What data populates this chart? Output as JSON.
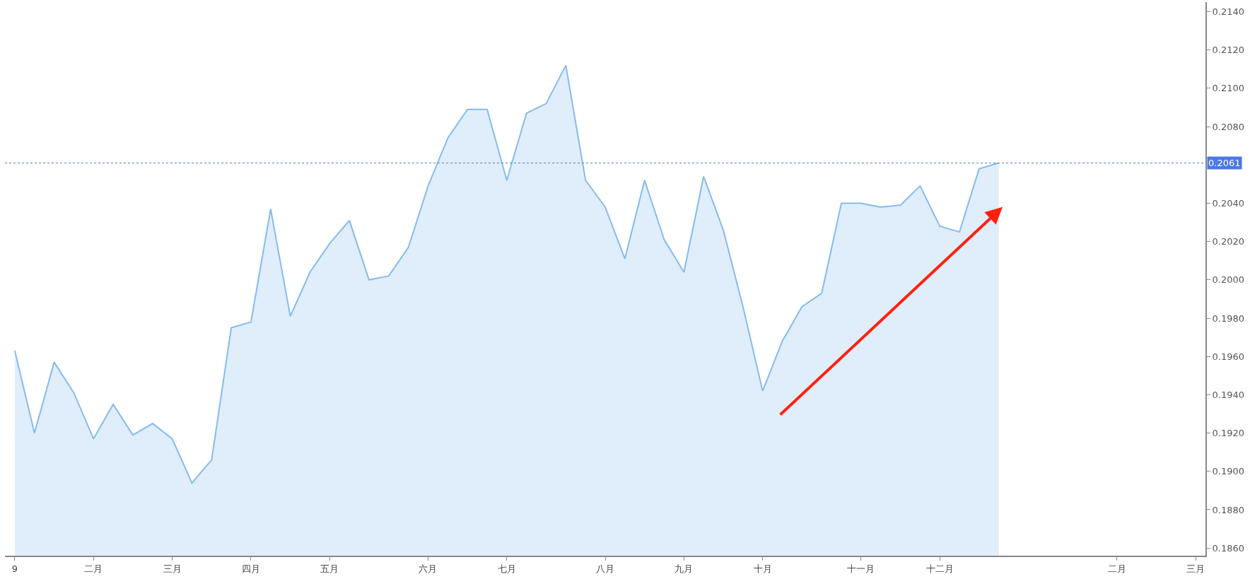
{
  "chart_data": {
    "type": "area",
    "categories": [
      "9",
      null,
      null,
      null,
      "二月",
      null,
      null,
      null,
      "三月",
      null,
      null,
      null,
      "四月",
      null,
      null,
      null,
      "五月",
      null,
      null,
      null,
      null,
      "六月",
      null,
      null,
      null,
      "七月",
      null,
      null,
      null,
      null,
      "八月",
      null,
      null,
      null,
      "九月",
      null,
      null,
      null,
      "十月",
      null,
      null,
      null,
      null,
      "十一月",
      null,
      null,
      null,
      "十二月",
      null,
      null,
      null,
      null,
      null,
      null,
      null,
      null,
      "二月",
      null,
      null,
      null,
      "三月"
    ],
    "series": [
      {
        "color": "#85bbee",
        "values": [
          0.1963,
          0.192,
          0.1957,
          0.1941,
          0.1917,
          0.1935,
          0.1919,
          0.1925,
          0.1917,
          0.1894,
          0.1906,
          0.1975,
          0.1978,
          0.2037,
          0.1981,
          0.2004,
          0.2019,
          0.2031,
          0.2,
          0.2002,
          0.2017,
          0.2049,
          0.2074,
          0.2089,
          0.2089,
          0.2052,
          0.2087,
          0.2092,
          0.2112,
          0.2052,
          0.2038,
          0.2011,
          0.2052,
          0.2021,
          0.2004,
          0.2054,
          0.2026,
          0.1986,
          0.1942,
          0.1968,
          0.1986,
          0.1993,
          0.204,
          0.204,
          0.2038,
          0.2039,
          0.2049,
          0.2028,
          0.2025,
          0.2058,
          0.2061,
          null,
          null,
          null,
          null,
          null,
          null,
          null,
          null,
          null,
          null
        ]
      }
    ],
    "ylim": [
      0.1856,
      0.2145
    ],
    "yticks": [
      {
        "value": 0.186,
        "label": "0.1860"
      },
      {
        "value": 0.188,
        "label": "0.1880"
      },
      {
        "value": 0.19,
        "label": "0.1900"
      },
      {
        "value": 0.192,
        "label": "0.1920"
      },
      {
        "value": 0.194,
        "label": "0.1940"
      },
      {
        "value": 0.196,
        "label": "0.1960"
      },
      {
        "value": 0.198,
        "label": "0.1980"
      },
      {
        "value": 0.2,
        "label": "0.2000"
      },
      {
        "value": 0.202,
        "label": "0.2020"
      },
      {
        "value": 0.204,
        "label": "0.2040"
      },
      {
        "value": 0.208,
        "label": "0.2080"
      },
      {
        "value": 0.21,
        "label": "0.2100"
      },
      {
        "value": 0.212,
        "label": "0.2120"
      },
      {
        "value": 0.214,
        "label": "0.2140"
      }
    ],
    "ref_lines": [
      {
        "axis": "y",
        "value": 0.2061,
        "label": "0.2061",
        "color": "#4a78e6",
        "line_style": "dotted"
      }
    ]
  }
}
